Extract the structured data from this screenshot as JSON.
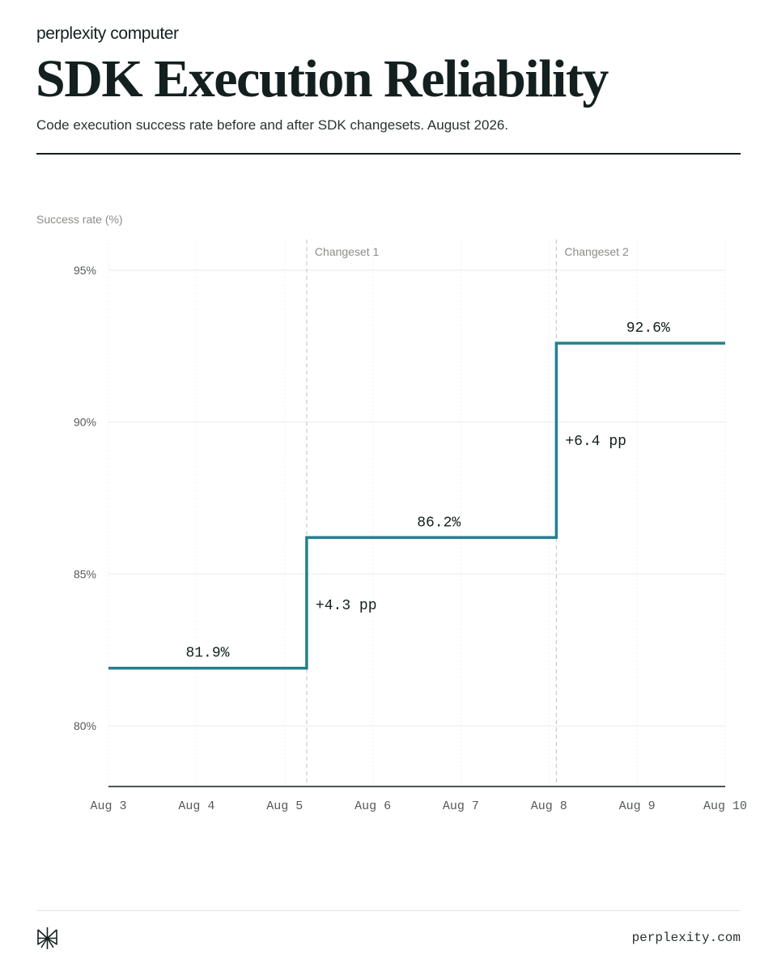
{
  "header": {
    "brand": "perplexity computer",
    "title": "SDK Execution Reliability",
    "subtitle": "Code execution success rate before and after SDK changesets. August 2026."
  },
  "footer": {
    "url": "perplexity.com",
    "logo_icon": "perplexity-logo-icon"
  },
  "colors": {
    "line": "#23808f",
    "text": "#13201f",
    "muted": "#8a8d88",
    "grid": "#ebebe8"
  },
  "chart_data": {
    "type": "line",
    "step": true,
    "ylabel": "Success rate (%)",
    "xlabel": "",
    "x_ticks": [
      "Aug 3",
      "Aug 4",
      "Aug 5",
      "Aug 6",
      "Aug 7",
      "Aug 8",
      "Aug 9",
      "Aug 10"
    ],
    "y_ticks": [
      80,
      85,
      90,
      95
    ],
    "y_tick_labels": [
      "80%",
      "85%",
      "90%",
      "95%"
    ],
    "ylim": [
      78,
      96
    ],
    "xlim": [
      "2026-08-03",
      "2026-08-10"
    ],
    "grid": true,
    "series": [
      {
        "points": [
          {
            "x": "2026-08-03",
            "y": 81.9
          },
          {
            "x": "2026-08-05 06:00",
            "y": 81.9
          },
          {
            "x": "2026-08-05 06:00",
            "y": 86.2
          },
          {
            "x": "2026-08-08 02:00",
            "y": 86.2
          },
          {
            "x": "2026-08-08 02:00",
            "y": 92.6
          },
          {
            "x": "2026-08-10",
            "y": 92.6
          }
        ]
      }
    ],
    "changesets": [
      {
        "label": "Changeset 1",
        "x": "2026-08-05 06:00"
      },
      {
        "label": "Changeset 2",
        "x": "2026-08-08 02:00"
      }
    ],
    "annotations": [
      {
        "text": "81.9%",
        "x": "2026-08-04 03:00",
        "y": 81.9
      },
      {
        "text": "86.2%",
        "x": "2026-08-06 18:00",
        "y": 86.2
      },
      {
        "text": "92.6%",
        "x": "2026-08-09 03:00",
        "y": 92.6
      },
      {
        "text": "+4.3 pp",
        "x": "2026-08-05 06:00",
        "y": 84.0
      },
      {
        "text": "+6.4 pp",
        "x": "2026-08-08 02:00",
        "y": 89.4
      }
    ]
  }
}
